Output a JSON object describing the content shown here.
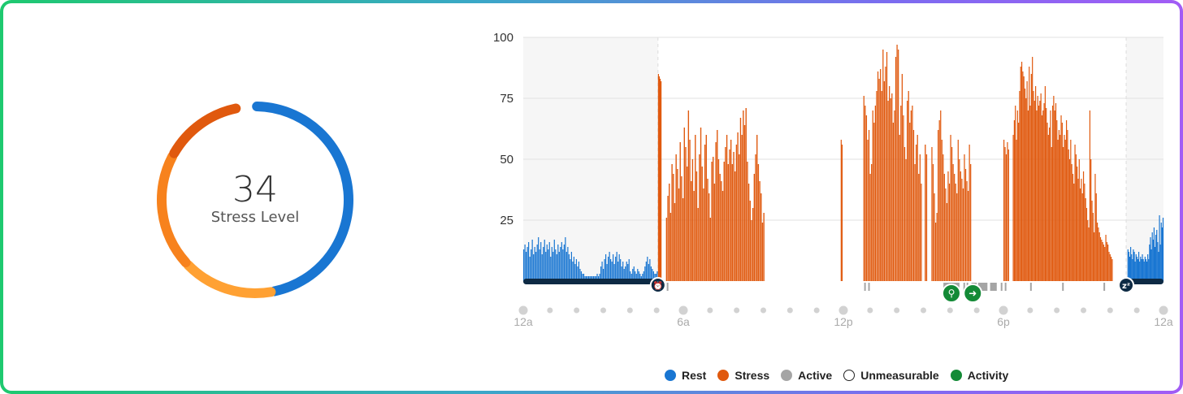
{
  "summary": {
    "value": "34",
    "label": "Stress Level",
    "ring_segments": [
      {
        "category": "rest",
        "fraction": 0.47,
        "color": "#1976d2"
      },
      {
        "category": "low",
        "fraction": 0.16,
        "color": "#ffa133"
      },
      {
        "category": "medium",
        "fraction": 0.2,
        "color": "#f7821d"
      },
      {
        "category": "high",
        "fraction": 0.14,
        "color": "#e0590e"
      }
    ]
  },
  "chart_data": {
    "type": "bar",
    "x_ticks": [
      "12a",
      "6a",
      "12p",
      "6p",
      "12a"
    ],
    "y_ticks": [
      "25",
      "50",
      "75",
      "100"
    ],
    "ylim": [
      0,
      100
    ],
    "xlim_hours": [
      0,
      24
    ],
    "colors": {
      "rest": "#1976d2",
      "stress": "#e0590e",
      "active": "#a5a5a5",
      "activity": "#138a36",
      "sleep": "#0d2a44"
    },
    "sleep_periods": [
      [
        0,
        5.05
      ],
      [
        22.6,
        24
      ]
    ],
    "rest_segments": [
      {
        "start": 0.0,
        "end": 5.05,
        "values": [
          13,
          15,
          12,
          14,
          16,
          10,
          13,
          17,
          11,
          14,
          12,
          15,
          18,
          13,
          16,
          11,
          14,
          17,
          12,
          15,
          13,
          16,
          10,
          14,
          12,
          17,
          13,
          11,
          15,
          12,
          14,
          16,
          13,
          15,
          18,
          12,
          14,
          11,
          9,
          12,
          8,
          10,
          7,
          9,
          6,
          8,
          5,
          4,
          3,
          3,
          2,
          2,
          2,
          2,
          2,
          2,
          2,
          2,
          2,
          2,
          3,
          2,
          3,
          6,
          8,
          5,
          9,
          11,
          7,
          10,
          12,
          9,
          8,
          11,
          7,
          10,
          12,
          8,
          11,
          9,
          6,
          8,
          5,
          6,
          8,
          7,
          9,
          4,
          3,
          5,
          6,
          4,
          3,
          5,
          4,
          3,
          2,
          3,
          4,
          6,
          8,
          10,
          7,
          9,
          6,
          5,
          4,
          3,
          3,
          4
        ]
      },
      {
        "start": 22.65,
        "end": 24.0,
        "values": [
          13,
          12,
          10,
          14,
          11,
          9,
          13,
          12,
          8,
          11,
          10,
          9,
          12,
          8,
          10,
          9,
          11,
          9,
          8,
          10,
          9,
          8,
          11,
          9,
          15,
          18,
          13,
          20,
          17,
          22,
          14,
          19,
          21,
          16,
          12,
          27,
          15,
          24,
          22,
          26
        ]
      }
    ],
    "stress_segments": [
      {
        "start": 5.05,
        "end": 5.18,
        "values": [
          85,
          84,
          83,
          82
        ]
      },
      {
        "start": 5.35,
        "end": 9.05,
        "values": [
          26,
          35,
          40,
          28,
          48,
          44,
          32,
          52,
          46,
          38,
          57,
          43,
          34,
          63,
          55,
          47,
          70,
          58,
          41,
          50,
          37,
          60,
          45,
          30,
          52,
          63,
          47,
          38,
          56,
          60,
          42,
          36,
          26,
          49,
          51,
          40,
          57,
          62,
          50,
          44,
          41,
          37,
          49,
          55,
          60,
          48,
          54,
          58,
          48,
          53,
          45,
          56,
          61,
          52,
          67,
          60,
          70,
          64,
          71,
          49,
          40,
          33,
          25,
          30,
          44,
          52,
          60,
          48,
          41,
          36,
          24,
          28
        ]
      },
      {
        "start": 11.9,
        "end": 11.97,
        "values": [
          58,
          56
        ]
      },
      {
        "start": 12.75,
        "end": 14.95,
        "values": [
          76,
          72,
          68,
          58,
          62,
          44,
          48,
          70,
          65,
          72,
          78,
          86,
          83,
          87,
          78,
          95,
          82,
          88,
          94,
          74,
          80,
          75,
          77,
          65,
          70,
          92,
          97,
          95,
          60,
          72,
          85,
          68,
          55,
          50,
          74,
          78,
          65,
          70,
          72,
          62,
          48,
          56,
          60,
          44,
          52,
          40
        ]
      },
      {
        "start": 15.05,
        "end": 15.15,
        "values": [
          56,
          52
        ]
      },
      {
        "start": 15.3,
        "end": 16.8,
        "values": [
          55,
          48,
          36,
          24,
          28,
          62,
          66,
          70,
          58,
          52,
          44,
          38,
          32,
          45,
          40,
          60,
          55,
          48,
          44,
          40,
          36,
          58,
          50,
          45,
          42,
          38,
          52,
          46,
          41,
          37,
          56,
          48
        ]
      },
      {
        "start": 18.0,
        "end": 18.22,
        "values": [
          58,
          55,
          52,
          57,
          54
        ]
      },
      {
        "start": 18.35,
        "end": 22.1,
        "values": [
          60,
          66,
          72,
          58,
          70,
          65,
          78,
          88,
          90,
          86,
          84,
          79,
          75,
          82,
          70,
          88,
          72,
          85,
          92,
          78,
          74,
          80,
          70,
          76,
          72,
          74,
          77,
          68,
          70,
          73,
          80,
          71,
          65,
          60,
          63,
          70,
          55,
          72,
          76,
          70,
          73,
          66,
          58,
          62,
          60,
          68,
          65,
          55,
          60,
          58,
          66,
          62,
          54,
          50,
          58,
          48,
          44,
          40,
          56,
          52,
          47,
          42,
          50,
          38,
          42,
          36,
          45,
          40,
          34,
          30,
          25,
          22,
          70,
          50,
          33,
          28,
          20,
          44,
          36,
          24,
          22,
          20,
          18,
          17,
          16,
          15,
          14,
          19,
          16,
          15,
          12,
          11,
          10,
          9
        ]
      }
    ],
    "active_marks": [
      {
        "start": 5.38,
        "end": 5.42
      },
      {
        "start": 12.78,
        "end": 12.82
      },
      {
        "start": 12.93,
        "end": 12.98
      },
      {
        "start": 15.75,
        "end": 16.35
      },
      {
        "start": 16.5,
        "end": 16.55
      },
      {
        "start": 16.62,
        "end": 16.66
      },
      {
        "start": 16.8,
        "end": 17.0
      },
      {
        "start": 17.05,
        "end": 17.4
      },
      {
        "start": 17.5,
        "end": 17.75
      },
      {
        "start": 17.9,
        "end": 17.95
      },
      {
        "start": 18.05,
        "end": 18.09
      },
      {
        "start": 19.0,
        "end": 19.04
      },
      {
        "start": 20.2,
        "end": 20.24
      },
      {
        "start": 21.75,
        "end": 21.8
      },
      {
        "start": 22.4,
        "end": 22.44
      }
    ],
    "markers": [
      {
        "hour": 5.05,
        "icon": "alarm-clock-icon"
      },
      {
        "hour": 22.6,
        "icon": "sleep-zzz-icon"
      },
      {
        "hour": 16.05,
        "icon": "walking-activity-icon"
      },
      {
        "hour": 16.85,
        "icon": "running-activity-icon"
      }
    ],
    "legend": [
      {
        "label": "Rest",
        "color": "#1976d2",
        "hollow": false
      },
      {
        "label": "Stress",
        "color": "#e0590e",
        "hollow": false
      },
      {
        "label": "Active",
        "color": "#a5a5a5",
        "hollow": false
      },
      {
        "label": "Unmeasurable",
        "color": "#ffffff",
        "hollow": true
      },
      {
        "label": "Activity",
        "color": "#138a36",
        "hollow": false
      }
    ]
  }
}
